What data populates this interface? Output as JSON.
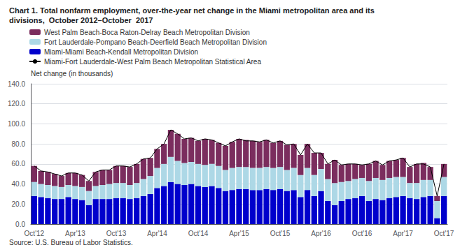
{
  "chart_data": {
    "type": "bar",
    "title": "Chart 1. Total nonfarm employment, over-the-year net change in the Miami metropolitan area and its",
    "subtitle": "divisions,  October 2012–October  2017",
    "ylabel": "Net change (in thousands)",
    "annotations": [
      "Source: U.S. Bureau of Labor Statistics."
    ],
    "stacked": true,
    "grid": true,
    "legend": "upper left",
    "ylim": [
      0,
      140
    ],
    "yticks": [
      {
        "value": 0,
        "label": "0.0"
      },
      {
        "value": 20,
        "label": "20.0"
      },
      {
        "value": 40,
        "label": "40.0"
      },
      {
        "value": 60,
        "label": "60.0"
      },
      {
        "value": 80,
        "label": "80.0"
      },
      {
        "value": 100,
        "label": "100.0"
      },
      {
        "value": 120,
        "label": "120.0"
      },
      {
        "value": 140,
        "label": "140.0"
      }
    ],
    "categories": [
      "Oct'12",
      null,
      null,
      null,
      null,
      null,
      "Apr'13",
      null,
      null,
      null,
      null,
      null,
      "Oct'13",
      null,
      null,
      null,
      null,
      null,
      "Apr'14",
      null,
      null,
      null,
      null,
      null,
      "Oct'14",
      null,
      null,
      null,
      null,
      null,
      "Apr'15",
      null,
      null,
      null,
      null,
      null,
      "Oct'15",
      null,
      null,
      null,
      null,
      null,
      "Apr'16",
      null,
      null,
      null,
      null,
      null,
      "Oct'16",
      null,
      null,
      null,
      null,
      null,
      "Apr'17",
      null,
      null,
      null,
      null,
      null,
      "Oct'17"
    ],
    "series": [
      {
        "name": "Miami-Miami Beach-Kendall Metropolitan Division",
        "color": "#0000CC",
        "values": [
          28,
          27,
          26,
          25,
          25,
          27,
          25,
          24,
          19,
          25,
          25,
          25,
          26,
          26,
          25,
          26,
          28,
          30,
          36,
          38,
          42,
          40,
          39,
          40,
          38,
          37,
          38,
          36,
          33,
          34,
          35,
          35,
          34,
          34,
          35,
          34,
          35,
          33,
          34,
          27,
          34,
          28,
          33,
          23,
          19,
          23,
          25,
          26,
          28,
          23,
          25,
          24,
          26,
          27,
          28,
          26,
          25,
          27,
          28,
          6,
          28
        ]
      },
      {
        "name": "Fort Lauderdale-Pompano Beach-Deerfield Beach Metropolitan Division",
        "color": "#ADD8E6",
        "values": [
          14,
          13,
          13,
          13,
          12,
          12,
          13,
          13,
          14,
          13,
          14,
          15,
          15,
          15,
          14,
          15,
          17,
          18,
          20,
          22,
          25,
          23,
          22,
          22,
          22,
          22,
          22,
          22,
          21,
          22,
          22,
          22,
          22,
          22,
          22,
          22,
          22,
          21,
          22,
          22,
          22,
          21,
          22,
          22,
          22,
          19,
          18,
          19,
          18,
          20,
          21,
          20,
          20,
          20,
          19,
          15,
          16,
          17,
          16,
          17,
          19
        ]
      },
      {
        "name": "West Palm Beach-Boca Raton-Delray Beach Metropolitan Division",
        "color": "#7B2D5E",
        "values": [
          16,
          13,
          13,
          12,
          11,
          12,
          13,
          12,
          10,
          14,
          15,
          14,
          17,
          17,
          18,
          19,
          20,
          18,
          19,
          20,
          27,
          27,
          24,
          24,
          23,
          26,
          24,
          23,
          24,
          26,
          28,
          27,
          27,
          26,
          27,
          25,
          26,
          25,
          24,
          20,
          24,
          22,
          16,
          15,
          23,
          17,
          17,
          15,
          13,
          17,
          17,
          15,
          17,
          17,
          19,
          16,
          19,
          17,
          13,
          5,
          13
        ]
      },
      {
        "name": "Miami-Fort Lauderdale-West Palm Beach Metropolitan Statistical Area",
        "color": "#000000",
        "type": "line",
        "values": [
          58,
          53,
          52,
          50,
          48,
          51,
          51,
          49,
          43,
          52,
          54,
          54,
          58,
          58,
          57,
          60,
          65,
          66,
          75,
          80,
          94,
          90,
          85,
          86,
          83,
          85,
          84,
          81,
          78,
          82,
          85,
          83,
          83,
          82,
          84,
          81,
          83,
          79,
          80,
          69,
          80,
          71,
          71,
          60,
          64,
          59,
          60,
          60,
          59,
          60,
          63,
          59,
          63,
          64,
          66,
          57,
          60,
          60,
          57,
          28,
          60
        ]
      }
    ]
  }
}
